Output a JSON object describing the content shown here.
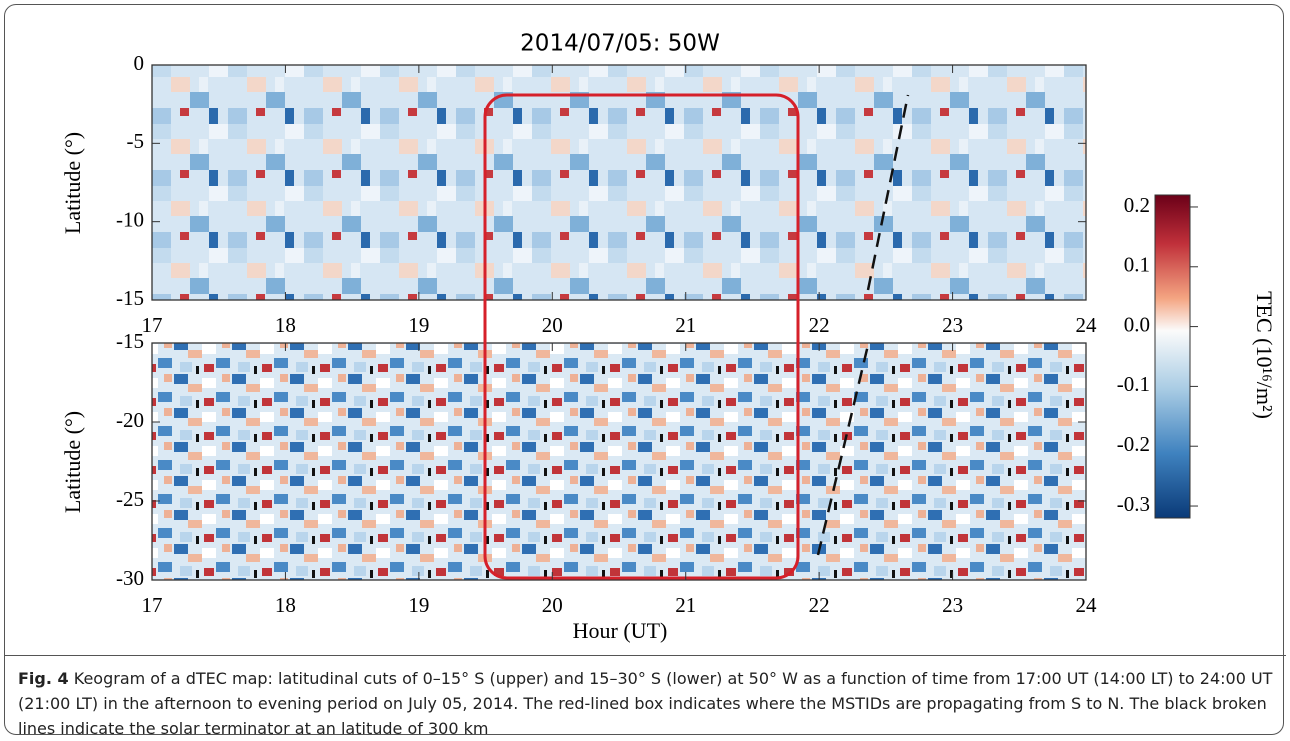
{
  "figure": {
    "title": "2014/07/05: 50W",
    "xlim": [
      17,
      24
    ],
    "xticks": [
      17,
      18,
      19,
      20,
      21,
      22,
      23,
      24
    ],
    "xlabel": "Hour (UT)",
    "panels": [
      {
        "ylabel": "Latitude (°)",
        "ylim": [
          -15,
          0
        ],
        "yticks": [
          0,
          -5,
          -10,
          -15
        ]
      },
      {
        "ylabel": "Latitude (°)",
        "ylim": [
          -30,
          -15
        ],
        "yticks": [
          -15,
          -20,
          -25,
          -30
        ]
      }
    ],
    "colorbar": {
      "label": "TEC (10¹⁶/m²)",
      "lim": [
        -0.32,
        0.22
      ],
      "ticks": [
        0.2,
        0.1,
        {
          "value": 0,
          "label": "0.0"
        },
        -0.1,
        -0.2,
        -0.3
      ]
    }
  },
  "caption": {
    "label": "Fig. 4",
    "text": "Keogram of a dTEC map: latitudinal cuts of 0–15° S (upper) and 15–30° S (lower) at 50° W as a function of time from 17:00 UT (14:00 LT) to 24:00 UT (21:00 LT) in the afternoon to evening period on July 05, 2014. The red-lined box indicates where the MSTIDs are propagating from S to N. The black broken lines indicate the solar terminator at an latitude of 300 km"
  }
}
